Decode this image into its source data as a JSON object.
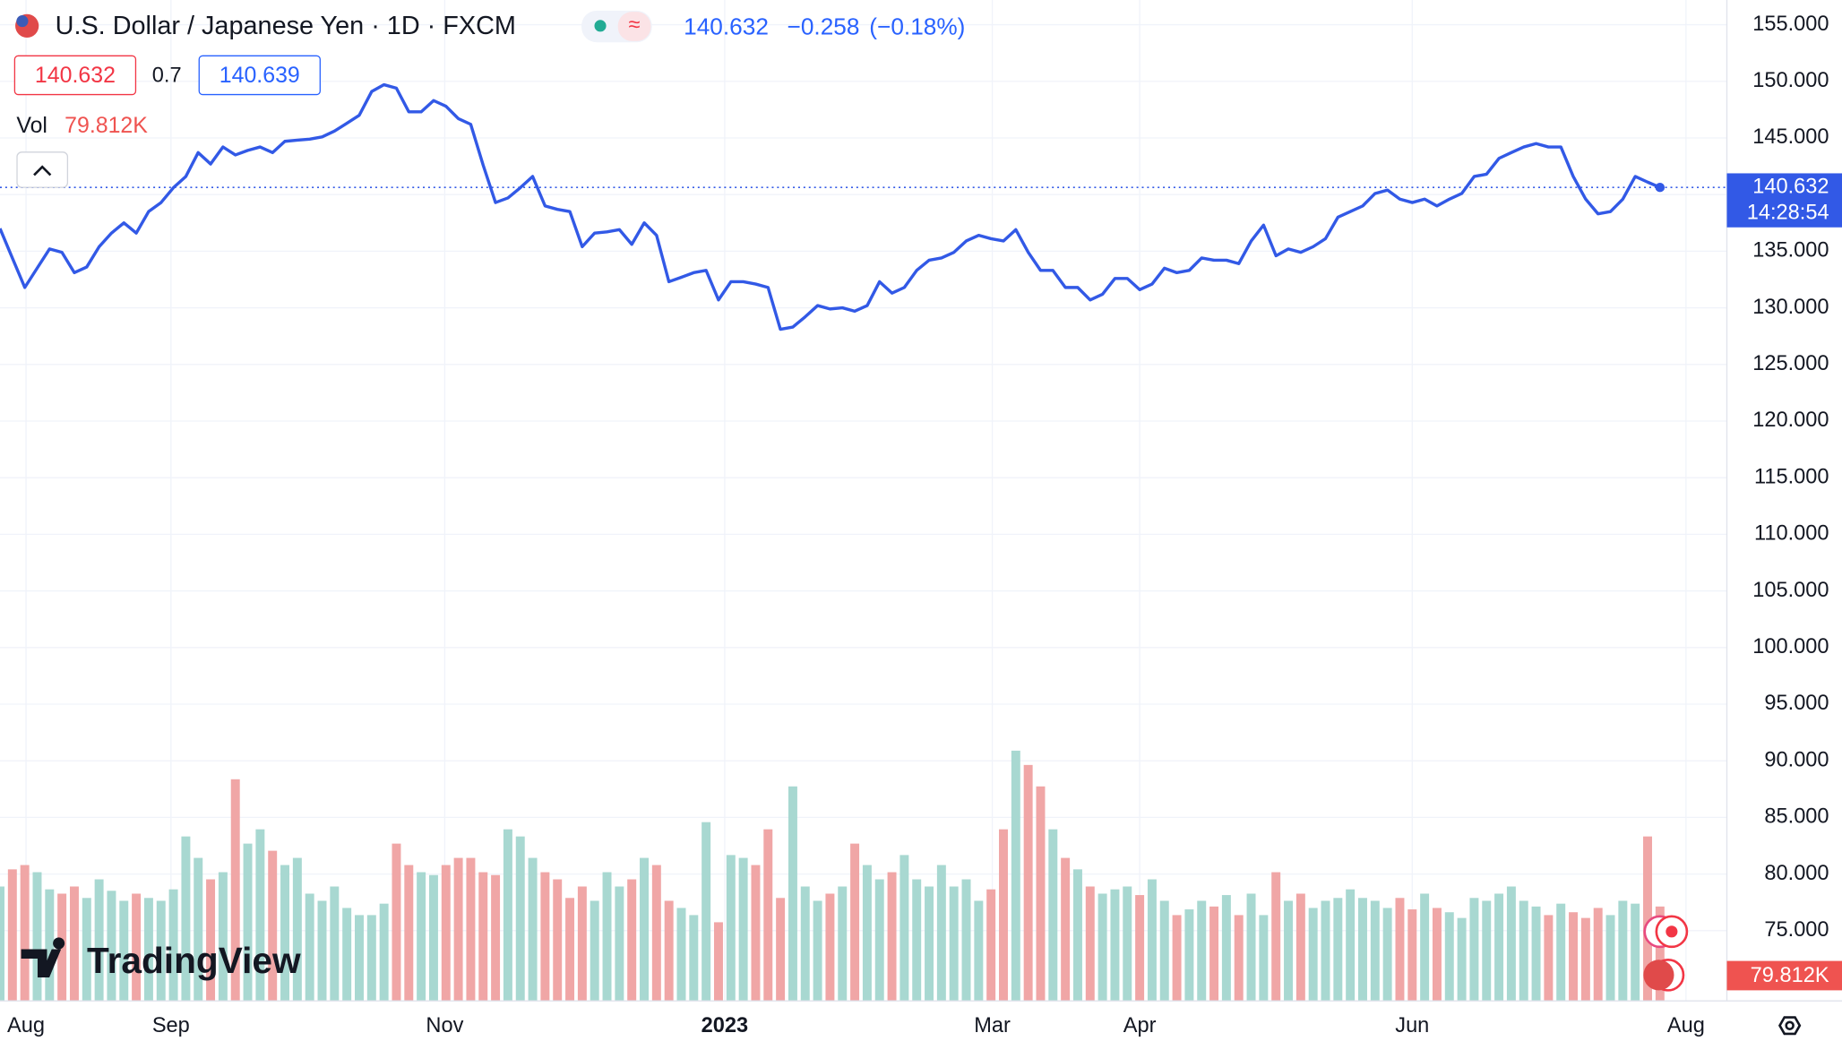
{
  "header": {
    "title": "U.S. Dollar / Japanese Yen · 1D · FXCM",
    "change": "−0.258",
    "change_pct": "(−0.18%)",
    "bid": "140.632",
    "spread": "0.7",
    "ask": "140.639",
    "vol_label": "Vol",
    "vol_value": "79.812K",
    "time": "14:28:54",
    "logo": "TradingView"
  },
  "chart_data": {
    "type": "line",
    "series": [
      {
        "color": "#3259e6",
        "values": [
          137,
          134.4,
          131.8,
          133.5,
          135.2,
          134.9,
          133.1,
          133.6,
          135.4,
          136.6,
          137.5,
          136.6,
          138.5,
          139.3,
          140.6,
          141.6,
          143.7,
          142.7,
          144.2,
          143.5,
          143.9,
          144.2,
          143.7,
          144.7,
          144.8,
          144.9,
          145.1,
          145.6,
          146.3,
          147.0,
          149.1,
          149.7,
          149.4,
          147.3,
          147.3,
          148.3,
          147.8,
          146.7,
          146.2,
          142.6,
          139.3,
          139.7,
          140.6,
          141.6,
          139.0,
          138.7,
          138.5,
          135.4,
          136.6,
          136.7,
          136.9,
          135.6,
          137.5,
          136.4,
          132.3,
          132.7,
          133.1,
          133.3,
          130.7,
          132.3,
          132.3,
          132.1,
          131.8,
          128.1,
          128.3,
          129.2,
          130.2,
          129.9,
          130.0,
          129.7,
          130.2,
          132.3,
          131.3,
          131.8,
          133.3,
          134.2,
          134.4,
          134.9,
          135.9,
          136.4,
          136.1,
          135.9,
          136.9,
          134.9,
          133.3,
          133.3,
          131.8,
          131.8,
          130.7,
          131.2,
          132.6,
          132.6,
          131.6,
          132.1,
          133.5,
          133.1,
          133.3,
          134.4,
          134.2,
          134.2,
          133.9,
          135.9,
          137.3,
          134.6,
          135.2,
          134.9,
          135.4,
          136.1,
          138.0,
          138.5,
          139.0,
          140.1,
          140.4,
          139.6,
          139.3,
          139.6,
          139.0,
          139.6,
          140.1,
          141.6,
          141.8,
          143.2,
          143.7,
          144.2,
          144.5,
          144.2,
          144.2,
          141.6,
          139.6,
          138.3,
          138.5,
          139.6,
          141.6,
          141.1,
          140.632
        ]
      },
      {
        "type": "bar",
        "axis": "y2",
        "up_color": "#a8d8d1",
        "down_color": "#f0a6a6",
        "values": [
          80,
          92,
          95,
          90,
          78,
          75,
          80,
          72,
          85,
          77,
          70,
          75,
          72,
          70,
          78,
          115,
          100,
          85,
          90,
          155,
          110,
          120,
          105,
          95,
          100,
          75,
          70,
          80,
          65,
          60,
          60,
          68,
          110,
          95,
          90,
          88,
          95,
          100,
          100,
          90,
          88,
          120,
          115,
          100,
          90,
          85,
          72,
          80,
          70,
          90,
          80,
          85,
          100,
          95,
          70,
          65,
          60,
          125,
          55,
          102,
          100,
          95,
          120,
          72,
          150,
          80,
          70,
          75,
          80,
          110,
          95,
          85,
          90,
          102,
          85,
          80,
          95,
          80,
          85,
          70,
          78,
          120,
          175,
          165,
          150,
          120,
          100,
          92,
          80,
          75,
          78,
          80,
          74,
          85,
          70,
          60,
          64,
          70,
          66,
          74,
          60,
          75,
          60,
          90,
          70,
          75,
          65,
          70,
          72,
          78,
          72,
          70,
          65,
          72,
          64,
          75,
          65,
          62,
          58,
          72,
          70,
          75,
          80,
          70,
          66,
          60,
          68,
          62,
          58,
          65,
          60,
          70,
          68,
          115,
          66
        ]
      }
    ],
    "xlim": [
      0,
      139.4
    ],
    "xticks": [
      {
        "value": 2.1,
        "label": "Aug"
      },
      {
        "value": 13.8,
        "label": "Sep"
      },
      {
        "value": 35.9,
        "label": "Nov"
      },
      {
        "value": 58.5,
        "label": "2023"
      },
      {
        "value": 80.1,
        "label": "Mar"
      },
      {
        "value": 92.0,
        "label": "Apr"
      },
      {
        "value": 114.0,
        "label": "Jun"
      },
      {
        "value": 136.1,
        "label": "Aug"
      }
    ],
    "ylim": [
      68.8,
      157.18
    ],
    "yticks": [
      {
        "value": 75,
        "label": "75.000"
      },
      {
        "value": 80,
        "label": "80.000"
      },
      {
        "value": 85,
        "label": "85.000"
      },
      {
        "value": 90,
        "label": "90.000"
      },
      {
        "value": 95,
        "label": "95.000"
      },
      {
        "value": 100,
        "label": "100.000"
      },
      {
        "value": 105,
        "label": "105.000"
      },
      {
        "value": 110,
        "label": "110.000"
      },
      {
        "value": 115,
        "label": "115.000"
      },
      {
        "value": 120,
        "label": "120.000"
      },
      {
        "value": 125,
        "label": "125.000"
      },
      {
        "value": 130,
        "label": "130.000"
      },
      {
        "value": 135,
        "label": "135.000"
      },
      {
        "value": 140,
        "label": "140.000"
      },
      {
        "value": 145,
        "label": "145.000"
      },
      {
        "value": 150,
        "label": "150.000"
      },
      {
        "value": 155,
        "label": "155.000"
      }
    ],
    "y2lim": [
      0,
      700
    ],
    "grid": true
  }
}
